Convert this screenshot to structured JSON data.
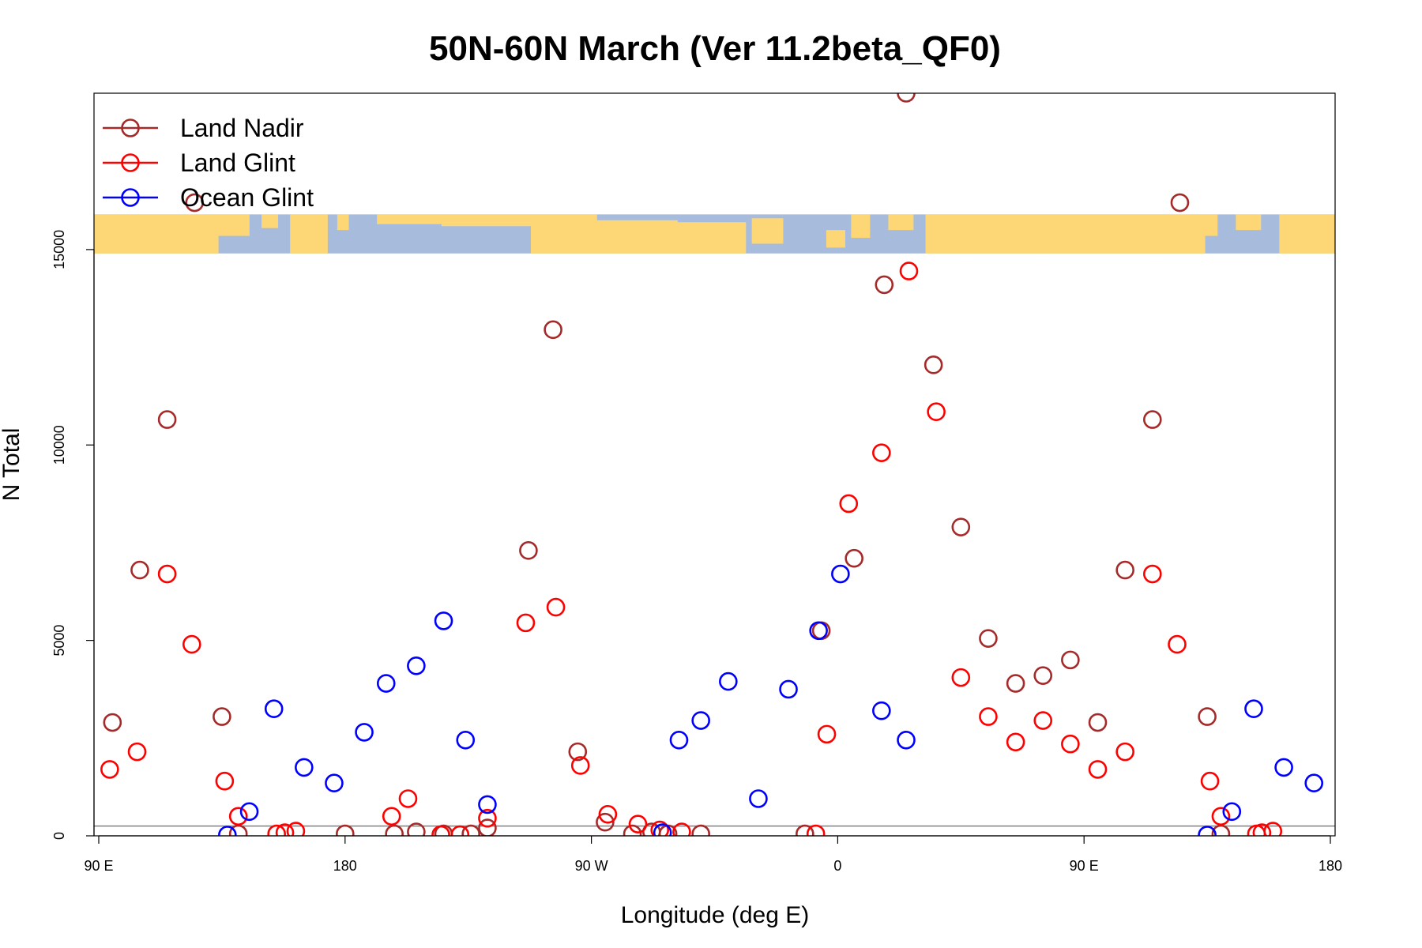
{
  "chart_data": {
    "type": "scatter",
    "title": "50N-60N March (Ver 11.2beta_QF0)",
    "xlabel": "Longitude (deg E)",
    "ylabel": "N Total",
    "xlim": [
      90,
      540
    ],
    "ylim": [
      0,
      19000
    ],
    "x_ticks": [
      {
        "value": 90,
        "label": "90 E"
      },
      {
        "value": 180,
        "label": "180"
      },
      {
        "value": 270,
        "label": "90 W"
      },
      {
        "value": 360,
        "label": "0"
      },
      {
        "value": 450,
        "label": "90 E"
      },
      {
        "value": 540,
        "label": "180"
      }
    ],
    "y_ticks": [
      {
        "value": 0,
        "label": "0"
      },
      {
        "value": 5000,
        "label": "5000"
      },
      {
        "value": 10000,
        "label": "10000"
      },
      {
        "value": 15000,
        "label": "15000"
      }
    ],
    "reference_line": 250,
    "map_strip": {
      "y_from": 14900,
      "y_to": 15900,
      "land_color": "#fdd775",
      "ocean_color": "#a7bcdc"
    },
    "legend_position": "top-left",
    "series": [
      {
        "name": "Land Nadir",
        "color": "#a52a2a",
        "points": [
          [
            95,
            2900
          ],
          [
            105,
            6800
          ],
          [
            115,
            10650
          ],
          [
            125,
            16200
          ],
          [
            135,
            3050
          ],
          [
            141,
            50
          ],
          [
            180,
            50
          ],
          [
            198,
            50
          ],
          [
            206,
            100
          ],
          [
            216,
            50
          ],
          [
            226,
            50
          ],
          [
            232,
            200
          ],
          [
            247,
            7300
          ],
          [
            256,
            12950
          ],
          [
            265,
            2150
          ],
          [
            275,
            350
          ],
          [
            285,
            50
          ],
          [
            292,
            100
          ],
          [
            298,
            50
          ],
          [
            310,
            50
          ],
          [
            348,
            50
          ],
          [
            354,
            5250
          ],
          [
            366,
            7100
          ],
          [
            377,
            14100
          ],
          [
            385,
            19000
          ],
          [
            395,
            12050
          ],
          [
            405,
            7900
          ],
          [
            415,
            5050
          ],
          [
            425,
            3900
          ],
          [
            435,
            4100
          ],
          [
            445,
            4500
          ],
          [
            455,
            2900
          ],
          [
            465,
            6800
          ],
          [
            475,
            10650
          ],
          [
            485,
            16200
          ],
          [
            495,
            3050
          ],
          [
            500,
            50
          ]
        ]
      },
      {
        "name": "Land Glint",
        "color": "#ff0000",
        "points": [
          [
            94,
            1700
          ],
          [
            104,
            2150
          ],
          [
            115,
            6700
          ],
          [
            124,
            4900
          ],
          [
            136,
            1400
          ],
          [
            141,
            500
          ],
          [
            155,
            50
          ],
          [
            158,
            80
          ],
          [
            162,
            120
          ],
          [
            197,
            500
          ],
          [
            203,
            950
          ],
          [
            215,
            30
          ],
          [
            222,
            30
          ],
          [
            232,
            450
          ],
          [
            246,
            5450
          ],
          [
            257,
            5850
          ],
          [
            266,
            1800
          ],
          [
            276,
            550
          ],
          [
            287,
            300
          ],
          [
            295,
            150
          ],
          [
            303,
            100
          ],
          [
            352,
            50
          ],
          [
            356,
            2600
          ],
          [
            364,
            8500
          ],
          [
            376,
            9800
          ],
          [
            386,
            14450
          ],
          [
            396,
            10850
          ],
          [
            405,
            4050
          ],
          [
            415,
            3050
          ],
          [
            425,
            2400
          ],
          [
            435,
            2950
          ],
          [
            445,
            2350
          ],
          [
            455,
            1700
          ],
          [
            465,
            2150
          ],
          [
            475,
            6700
          ],
          [
            484,
            4900
          ],
          [
            496,
            1400
          ],
          [
            500,
            500
          ],
          [
            513,
            50
          ],
          [
            515,
            80
          ],
          [
            519,
            120
          ]
        ]
      },
      {
        "name": "Ocean Glint",
        "color": "#0000ff",
        "points": [
          [
            137,
            20
          ],
          [
            145,
            620
          ],
          [
            154,
            3250
          ],
          [
            165,
            1750
          ],
          [
            176,
            1350
          ],
          [
            187,
            2650
          ],
          [
            195,
            3900
          ],
          [
            206,
            4350
          ],
          [
            216,
            5500
          ],
          [
            224,
            2450
          ],
          [
            232,
            800
          ],
          [
            296,
            80
          ],
          [
            302,
            2450
          ],
          [
            310,
            2950
          ],
          [
            320,
            3950
          ],
          [
            331,
            950
          ],
          [
            342,
            3750
          ],
          [
            353,
            5250
          ],
          [
            361,
            6700
          ],
          [
            376,
            3200
          ],
          [
            385,
            2450
          ],
          [
            495,
            20
          ],
          [
            504,
            620
          ],
          [
            512,
            3250
          ],
          [
            523,
            1750
          ],
          [
            534,
            1350
          ]
        ]
      }
    ]
  }
}
